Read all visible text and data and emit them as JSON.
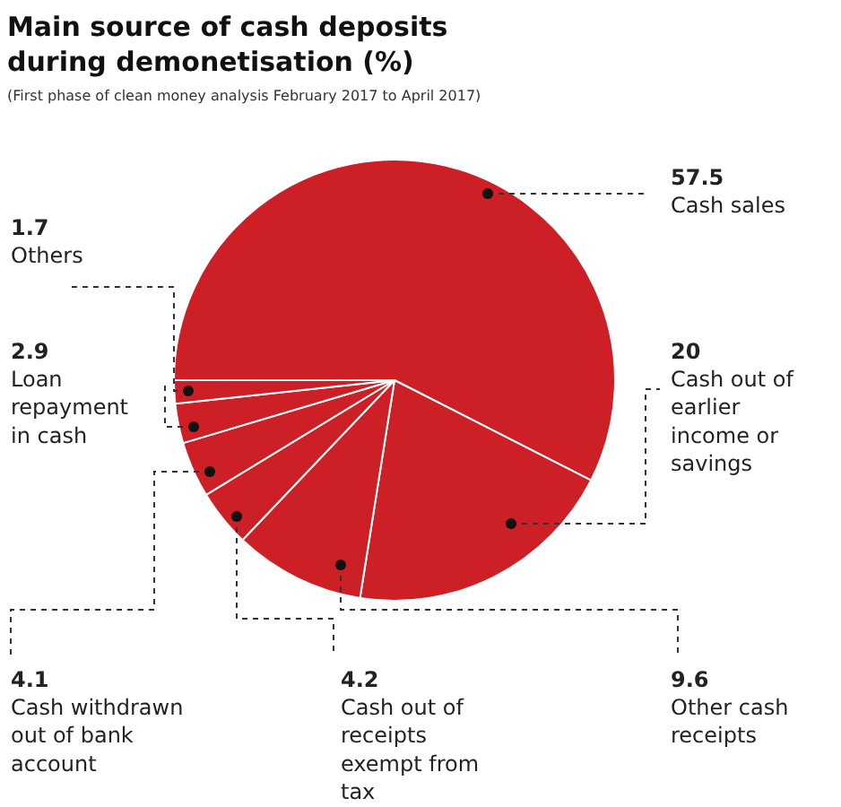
{
  "chart_data": {
    "type": "pie",
    "title": "Main source of cash deposits during demonetisation (%)",
    "subtitle": "(First phase of clean money analysis February 2017 to April 2017)",
    "categories": [
      "Cash sales",
      "Cash out of earlier income or savings",
      "Other cash receipts",
      "Cash out of receipts exempt from tax",
      "Cash withdrawn out of bank account",
      "Loan repayment in cash",
      "Others"
    ],
    "values": [
      57.5,
      20,
      9.6,
      4.2,
      4.1,
      2.9,
      1.7
    ],
    "colors": [
      "#cc1f26",
      "#cc1f26",
      "#cc1f26",
      "#cc1f26",
      "#cc1f26",
      "#cc1f26",
      "#cc1f26"
    ],
    "data_labels": true
  }
}
